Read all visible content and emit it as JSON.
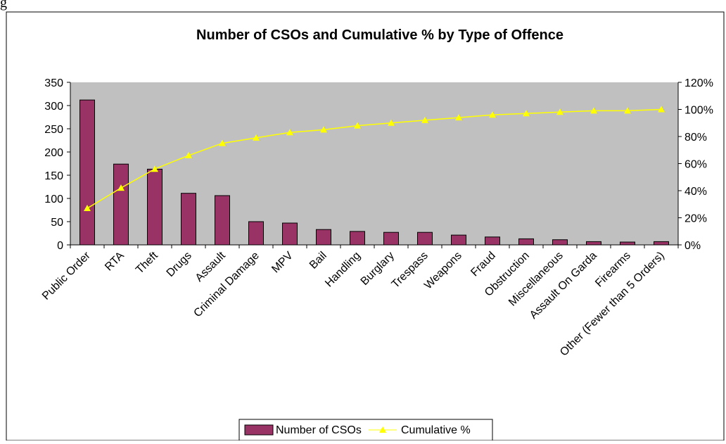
{
  "page": {
    "corner_label": "g"
  },
  "colors": {
    "page_bg": "#ffffff",
    "plot_bg": "#c0c0c0",
    "bar_fill": "#993366",
    "bar_stroke": "#000000",
    "line_color": "#ffff00",
    "frame": "#000000"
  },
  "chart_data": {
    "type": "bar",
    "title": "Number of CSOs and Cumulative % by Type of Offence",
    "categories": [
      "Public Order",
      "RTA",
      "Theft",
      "Drugs",
      "Assault",
      "Criminal Damage",
      "MPV",
      "Bail",
      "Handling",
      "Burglary",
      "Trespass",
      "Weapons",
      "Fraud",
      "Obstruction",
      "Miscellaneous",
      "Assault On Garda",
      "Firearms",
      "Other (Fewer than  5 Orders)"
    ],
    "series": [
      {
        "name": "Number of CSOs",
        "type": "bar",
        "axis": "left",
        "values": [
          312,
          174,
          163,
          111,
          106,
          50,
          47,
          33,
          29,
          27,
          27,
          21,
          17,
          13,
          11,
          7,
          6,
          7
        ]
      },
      {
        "name": "Cumulative %",
        "type": "line",
        "axis": "right",
        "marker": "triangle",
        "values": [
          27,
          42,
          56,
          66,
          75,
          79,
          83,
          85,
          88,
          90,
          92,
          94,
          96,
          97,
          98,
          99,
          99,
          100
        ]
      }
    ],
    "ylim": [
      0,
      350
    ],
    "y_ticks": [
      0,
      50,
      100,
      150,
      200,
      250,
      300,
      350
    ],
    "y2lim": [
      0,
      120
    ],
    "y2_ticks": [
      "0%",
      "20%",
      "40%",
      "60%",
      "80%",
      "100%",
      "120%"
    ],
    "y2_tick_values": [
      0,
      20,
      40,
      60,
      80,
      100,
      120
    ],
    "grid": false,
    "legend_position": "bottom-center"
  }
}
